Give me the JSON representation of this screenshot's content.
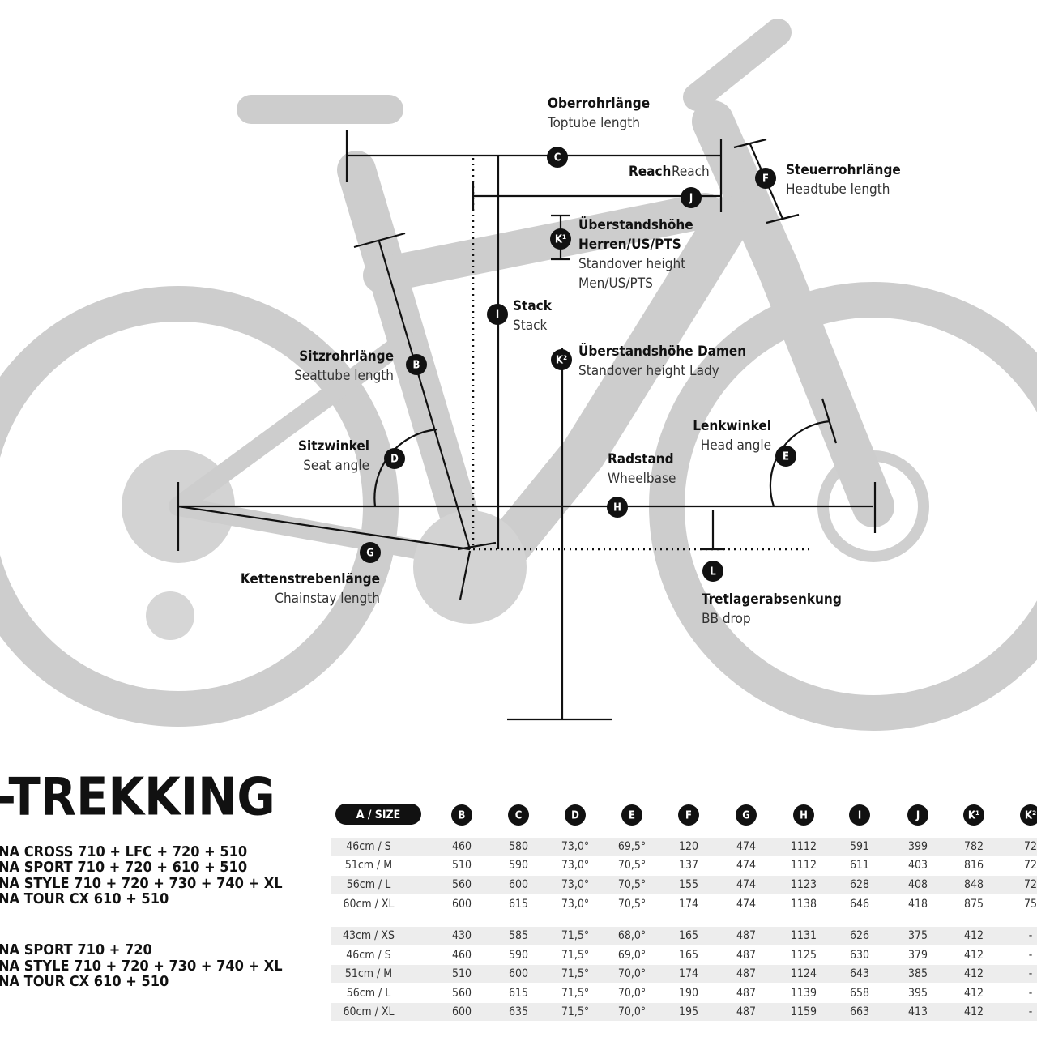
{
  "labels": [
    {
      "letter": "C",
      "title": [
        "Oberrohrlänge"
      ],
      "subtitle": [
        "Toptube length"
      ]
    },
    {
      "letter": "J",
      "title": [
        "Reach"
      ],
      "subtitle": [
        "Reach"
      ]
    },
    {
      "letter": "F",
      "title": [
        "Steuerrohrlänge"
      ],
      "subtitle": [
        "Headtube length"
      ]
    },
    {
      "letter": "K¹",
      "title": [
        "Überstandshöhe",
        "Herren/US/PTS"
      ],
      "subtitle": [
        "Standover height",
        "Men/US/PTS"
      ]
    },
    {
      "letter": "I",
      "title": [
        "Stack"
      ],
      "subtitle": [
        "Stack"
      ]
    },
    {
      "letter": "K²",
      "title": [
        "Überstandshöhe Damen"
      ],
      "subtitle": [
        "Standover height Lady"
      ]
    },
    {
      "letter": "B",
      "title": [
        "Sitzrohrlänge"
      ],
      "subtitle": [
        "Seattube length"
      ]
    },
    {
      "letter": "D",
      "title": [
        "Sitzwinkel"
      ],
      "subtitle": [
        "Seat angle"
      ]
    },
    {
      "letter": "E",
      "title": [
        "Lenkwinkel"
      ],
      "subtitle": [
        "Head angle"
      ]
    },
    {
      "letter": "H",
      "title": [
        "Radstand"
      ],
      "subtitle": [
        "Wheelbase"
      ]
    },
    {
      "letter": "G",
      "title": [
        "Kettenstrebenlänge"
      ],
      "subtitle": [
        "Chainstay length"
      ]
    },
    {
      "letter": "L",
      "title": [
        "Tretlagerabsenkung"
      ],
      "subtitle": [
        "BB drop"
      ]
    }
  ],
  "table": {
    "title": "-TREKKING",
    "size_header": "A / SIZE",
    "columns": [
      "B",
      "C",
      "D",
      "E",
      "F",
      "G",
      "H",
      "I",
      "J",
      "K¹",
      "K²"
    ],
    "groups": [
      {
        "models": [
          "NA CROSS 710 + LFC + 720 + 510",
          "NA SPORT 710 + 720 + 610 + 510",
          "NA STYLE 710 + 720 + 730 + 740 + XL",
          "NA TOUR CX 610 + 510"
        ],
        "rows": [
          [
            "46cm / S",
            "460",
            "580",
            "73,0°",
            "69,5°",
            "120",
            "474",
            "1112",
            "591",
            "399",
            "782",
            "72"
          ],
          [
            "51cm / M",
            "510",
            "590",
            "73,0°",
            "70,5°",
            "137",
            "474",
            "1112",
            "611",
            "403",
            "816",
            "72"
          ],
          [
            "56cm / L",
            "560",
            "600",
            "73,0°",
            "70,5°",
            "155",
            "474",
            "1123",
            "628",
            "408",
            "848",
            "72"
          ],
          [
            "60cm / XL",
            "600",
            "615",
            "73,0°",
            "70,5°",
            "174",
            "474",
            "1138",
            "646",
            "418",
            "875",
            "75"
          ]
        ]
      },
      {
        "models": [
          "NA SPORT 710 + 720",
          "NA STYLE 710 + 720 + 730 + 740 + XL",
          "NA TOUR CX 610 + 510"
        ],
        "rows": [
          [
            "43cm / XS",
            "430",
            "585",
            "71,5°",
            "68,0°",
            "165",
            "487",
            "1131",
            "626",
            "375",
            "412",
            "-"
          ],
          [
            "46cm / S",
            "460",
            "590",
            "71,5°",
            "69,0°",
            "165",
            "487",
            "1125",
            "630",
            "379",
            "412",
            "-"
          ],
          [
            "51cm / M",
            "510",
            "600",
            "71,5°",
            "70,0°",
            "174",
            "487",
            "1124",
            "643",
            "385",
            "412",
            "-"
          ],
          [
            "56cm / L",
            "560",
            "615",
            "71,5°",
            "70,0°",
            "190",
            "487",
            "1139",
            "658",
            "395",
            "412",
            "-"
          ],
          [
            "60cm / XL",
            "600",
            "635",
            "71,5°",
            "70,0°",
            "195",
            "487",
            "1159",
            "663",
            "413",
            "412",
            "-"
          ]
        ]
      }
    ]
  }
}
